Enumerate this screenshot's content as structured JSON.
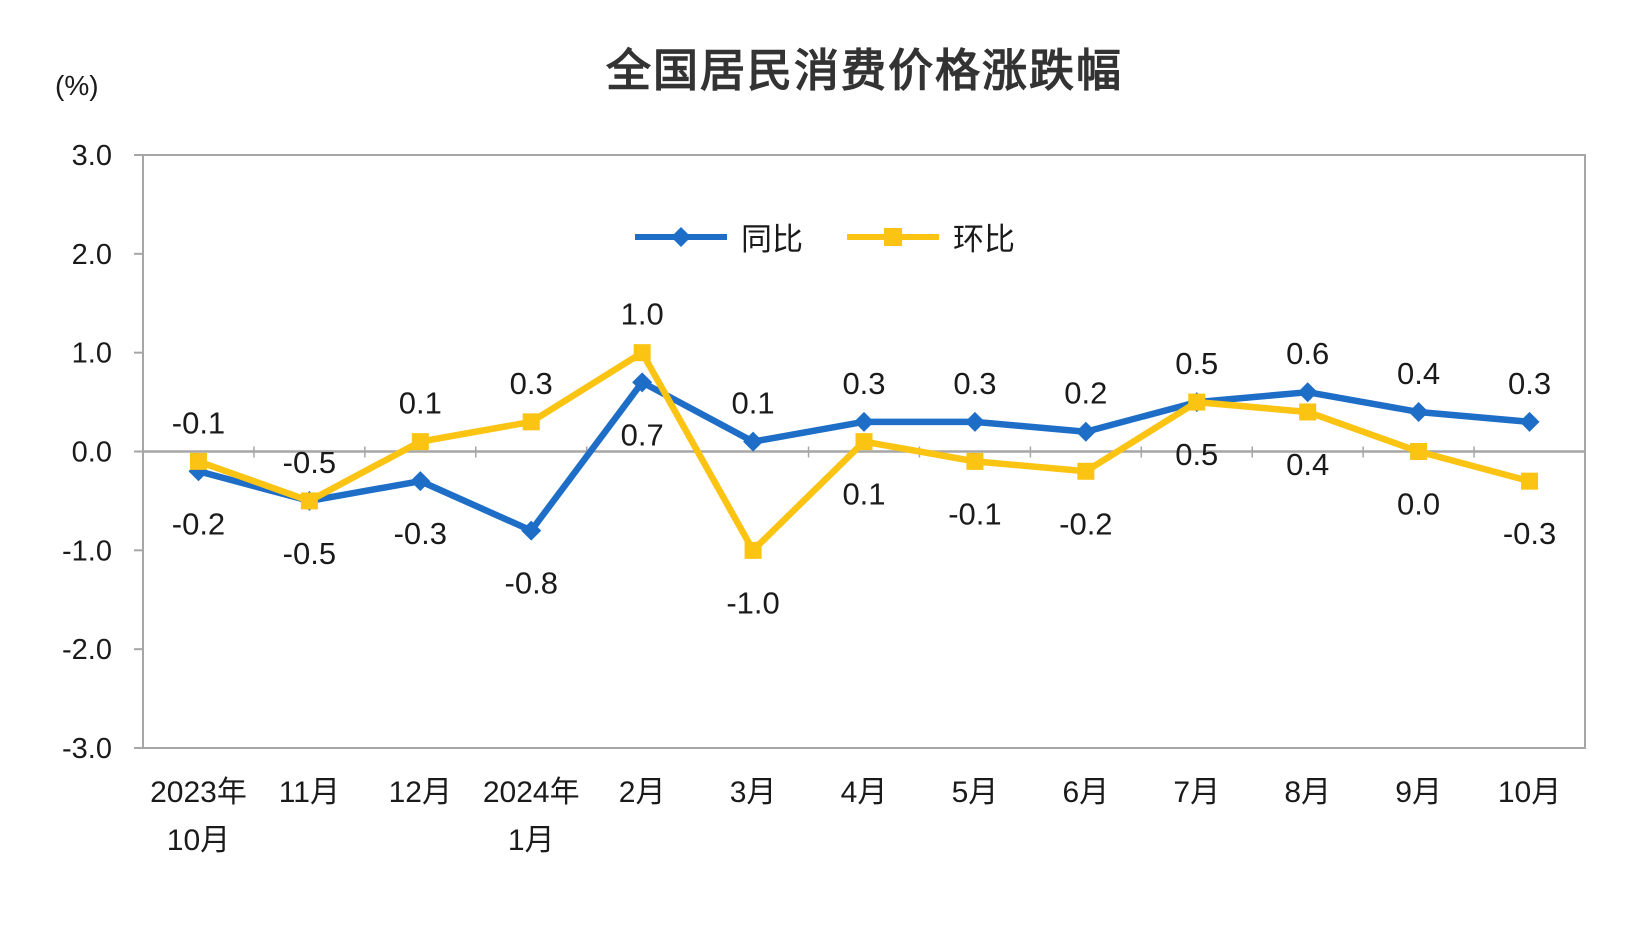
{
  "page": {
    "background": "#FFFFFF"
  },
  "chart_data": {
    "type": "line",
    "title": "全国居民消费价格涨跌幅",
    "unit_label": "(%)",
    "categories": [
      "2023年\n10月",
      "11月",
      "12月",
      "2024年\n1月",
      "2月",
      "3月",
      "4月",
      "5月",
      "6月",
      "7月",
      "8月",
      "9月",
      "10月"
    ],
    "series": [
      {
        "name": "同比",
        "color": "#1E6EC8",
        "marker": "diamond",
        "values": [
          -0.2,
          -0.5,
          -0.3,
          -0.8,
          0.7,
          0.1,
          0.3,
          0.3,
          0.2,
          0.5,
          0.6,
          0.4,
          0.3
        ]
      },
      {
        "name": "环比",
        "color": "#FBC312",
        "marker": "square",
        "values": [
          -0.1,
          -0.5,
          0.1,
          0.3,
          1.0,
          -1.0,
          0.1,
          -0.1,
          -0.2,
          0.5,
          0.4,
          0.0,
          -0.3
        ]
      }
    ],
    "ylim": [
      -3.0,
      3.0
    ],
    "ytick_step": 1.0,
    "ytick_labels": [
      "3.0",
      "2.0",
      "1.0",
      "0.0",
      "-1.0",
      "-2.0",
      "-3.0"
    ],
    "axis_color": "#A6A6A6",
    "text_color": "#1A1A1A",
    "legend_position": "top-center",
    "grid": false,
    "data_labels": true,
    "label_format": "one-decimal"
  }
}
